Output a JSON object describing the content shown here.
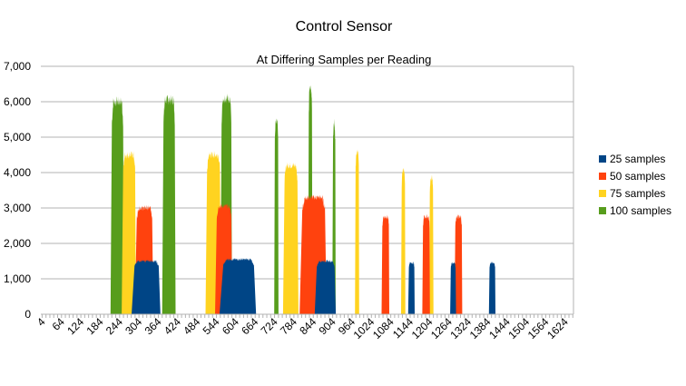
{
  "chart_data": {
    "type": "area",
    "title": "Control Sensor",
    "subtitle": "At Differing Samples per Reading",
    "xlabel": "",
    "ylabel": "",
    "ylim": [
      0,
      7000
    ],
    "y_ticks": [
      "0",
      "1,000",
      "2,000",
      "3,000",
      "4,000",
      "5,000",
      "6,000",
      "7,000"
    ],
    "y_tick_values": [
      0,
      1000,
      2000,
      3000,
      4000,
      5000,
      6000,
      7000
    ],
    "xlim": [
      0,
      1650
    ],
    "x_ticks": [
      "4",
      "64",
      "124",
      "184",
      "244",
      "304",
      "364",
      "424",
      "484",
      "544",
      "604",
      "664",
      "724",
      "784",
      "844",
      "904",
      "964",
      "1024",
      "1084",
      "1144",
      "1204",
      "1264",
      "1324",
      "1384",
      "1444",
      "1504",
      "1564",
      "1624"
    ],
    "x_tick_values": [
      4,
      64,
      124,
      184,
      244,
      304,
      364,
      424,
      484,
      544,
      604,
      664,
      724,
      784,
      844,
      904,
      964,
      1024,
      1084,
      1144,
      1204,
      1264,
      1324,
      1384,
      1444,
      1504,
      1564,
      1624
    ],
    "grid": true,
    "legend_position": "right",
    "series": [
      {
        "name": "100 samples",
        "color": "#579d1c",
        "bursts": [
          [
            220,
            255,
            6000
          ],
          [
            380,
            415,
            6050
          ],
          [
            560,
            590,
            6100
          ],
          [
            725,
            735,
            5400
          ],
          [
            830,
            840,
            6350
          ],
          [
            905,
            912,
            5400
          ]
        ]
      },
      {
        "name": "75 samples",
        "color": "#ffd320",
        "bursts": [
          [
            255,
            292,
            4500
          ],
          [
            515,
            555,
            4500
          ],
          [
            755,
            795,
            4200
          ],
          [
            975,
            985,
            4600
          ],
          [
            1118,
            1128,
            4050
          ],
          [
            1205,
            1215,
            3850
          ]
        ]
      },
      {
        "name": "50 samples",
        "color": "#ff420e",
        "bursts": [
          [
            297,
            345,
            3000
          ],
          [
            545,
            590,
            3050
          ],
          [
            810,
            880,
            3300
          ],
          [
            1058,
            1078,
            2750
          ],
          [
            1184,
            1204,
            2750
          ],
          [
            1284,
            1304,
            2750
          ]
        ]
      },
      {
        "name": "25 samples",
        "color": "#004586",
        "bursts": [
          [
            290,
            365,
            1500
          ],
          [
            565,
            660,
            1550
          ],
          [
            855,
            910,
            1500
          ],
          [
            1140,
            1157,
            1450
          ],
          [
            1270,
            1285,
            1450
          ],
          [
            1390,
            1407,
            1450
          ]
        ]
      }
    ],
    "legend_order": [
      "25 samples",
      "50 samples",
      "75 samples",
      "100 samples"
    ]
  }
}
